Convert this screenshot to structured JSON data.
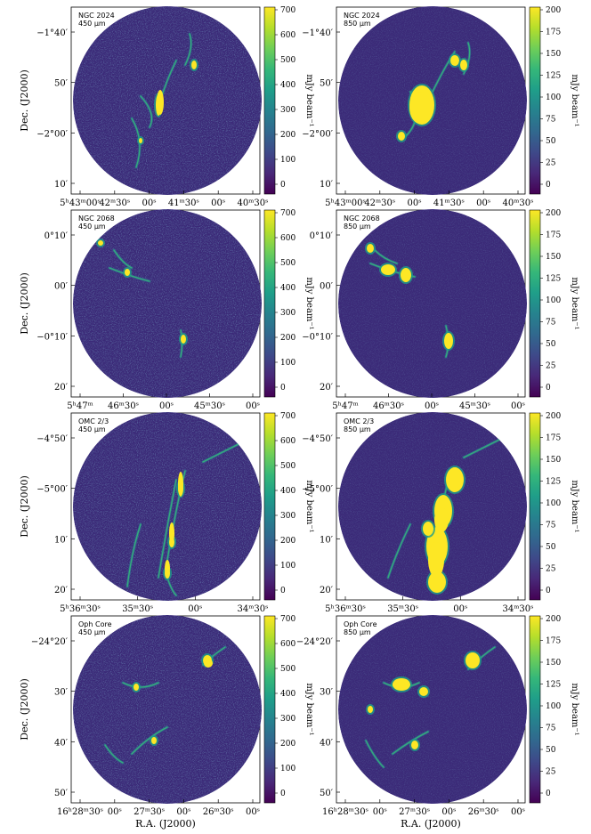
{
  "figure": {
    "xlabel": "R.A. (J2000)",
    "ylabel": "Dec. (J2000)",
    "colorbar_label": "mJy beam⁻¹",
    "colormap": [
      "#440154",
      "#482878",
      "#3e4989",
      "#31688e",
      "#26828e",
      "#1f9e89",
      "#35b779",
      "#6ece58",
      "#b5de2b",
      "#fde725"
    ]
  },
  "scales": {
    "w450": {
      "ticks": [
        "700",
        "600",
        "500",
        "400",
        "300",
        "200",
        "100",
        "0"
      ]
    },
    "w850": {
      "ticks": [
        "200",
        "175",
        "150",
        "125",
        "100",
        "75",
        "50",
        "25",
        "0"
      ]
    }
  },
  "rows": [
    {
      "name": "ngc2024",
      "ra_ticks": [
        "5ʰ43ᵐ00ˢ",
        "42ᵐ30ˢ",
        "00ˢ",
        "41ᵐ30ˢ",
        "00ˢ",
        "40ᵐ30ˢ"
      ],
      "dec_ticks": [
        "−1°40′",
        "50′",
        "−2°00′",
        "10′"
      ],
      "panels": [
        {
          "title": "NGC 2024",
          "wavelength": "450 μm",
          "scale": "w450"
        },
        {
          "title": "NGC 2024",
          "wavelength": "850 μm",
          "scale": "w850"
        }
      ]
    },
    {
      "name": "ngc2068",
      "ra_ticks": [
        "5ʰ47ᵐ",
        "46ᵐ30ˢ",
        "00ˢ",
        "45ᵐ30ˢ",
        "00ˢ"
      ],
      "dec_ticks": [
        "0°10′",
        "00′",
        "−0°10′",
        "20′"
      ],
      "panels": [
        {
          "title": "NGC 2068",
          "wavelength": "450 μm",
          "scale": "w450"
        },
        {
          "title": "NGC 2068",
          "wavelength": "850 μm",
          "scale": "w850"
        }
      ]
    },
    {
      "name": "omc23",
      "ra_ticks": [
        "5ʰ36ᵐ30ˢ",
        "35ᵐ30ˢ",
        "00ˢ",
        "34ᵐ30ˢ"
      ],
      "dec_ticks": [
        "−4°50′",
        "−5°00′",
        "10′",
        "20′"
      ],
      "panels": [
        {
          "title": "OMC 2/3",
          "wavelength": "450 μm",
          "scale": "w450"
        },
        {
          "title": "OMC 2/3",
          "wavelength": "850 μm",
          "scale": "w850"
        }
      ]
    },
    {
      "name": "ophcore",
      "ra_ticks": [
        "16ʰ28ᵐ30ˢ",
        "00ˢ",
        "27ᵐ30ˢ",
        "00ˢ",
        "26ᵐ30ˢ",
        "00ˢ"
      ],
      "dec_ticks": [
        "−24°20′",
        "30′",
        "40′",
        "50′"
      ],
      "panels": [
        {
          "title": "Oph Core",
          "wavelength": "450 μm",
          "scale": "w450"
        },
        {
          "title": "Oph Core",
          "wavelength": "850 μm",
          "scale": "w850"
        }
      ]
    }
  ]
}
